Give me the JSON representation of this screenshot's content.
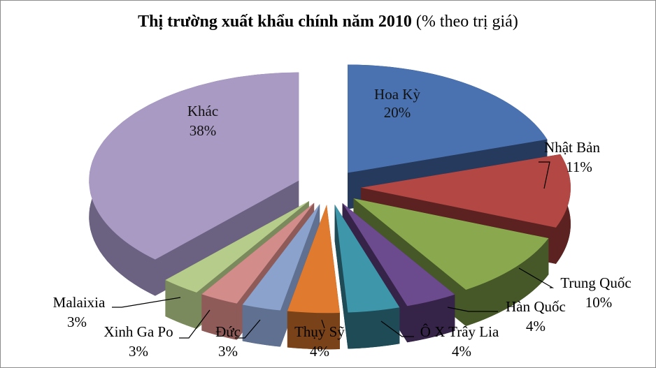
{
  "chart_data": {
    "type": "pie",
    "title_main": "Thị trường xuất khẩu chính năm 2010",
    "title_suffix": "(% theo trị giá)",
    "slices": [
      {
        "label": "Hoa Kỳ",
        "value": 20,
        "display": "20%",
        "color": "#4a72b0",
        "side": "#253a5c",
        "inside": true
      },
      {
        "label": "Nhật Bản",
        "value": 11,
        "display": "11%",
        "color": "#b24744",
        "side": "#5c2221"
      },
      {
        "label": "Trung Quốc",
        "value": 10,
        "display": "10%",
        "color": "#8aa84e",
        "side": "#465828"
      },
      {
        "label": "Hàn Quốc",
        "value": 4,
        "display": "4%",
        "color": "#6c4a8e",
        "side": "#352448"
      },
      {
        "label": "Ô X Trây Lia",
        "value": 4,
        "display": "4%",
        "color": "#3e96aa",
        "side": "#1f4b57"
      },
      {
        "label": "Thụy Sỹ",
        "value": 4,
        "display": "4%",
        "color": "#e07a2e",
        "side": "#7a4218"
      },
      {
        "label": "Đức",
        "value": 3,
        "display": "3%",
        "color": "#8aa2cc",
        "side": "#5f7090"
      },
      {
        "label": "Xinh Ga Po",
        "value": 3,
        "display": "3%",
        "color": "#d28c8a",
        "side": "#8e5b59"
      },
      {
        "label": "Malaixia",
        "value": 3,
        "display": "3%",
        "color": "#b6cc8a",
        "side": "#7b8a5c"
      },
      {
        "label": "Khác",
        "value": 38,
        "display": "38%",
        "color": "#a99ac4",
        "side": "#6b6180",
        "inside": true
      }
    ]
  }
}
